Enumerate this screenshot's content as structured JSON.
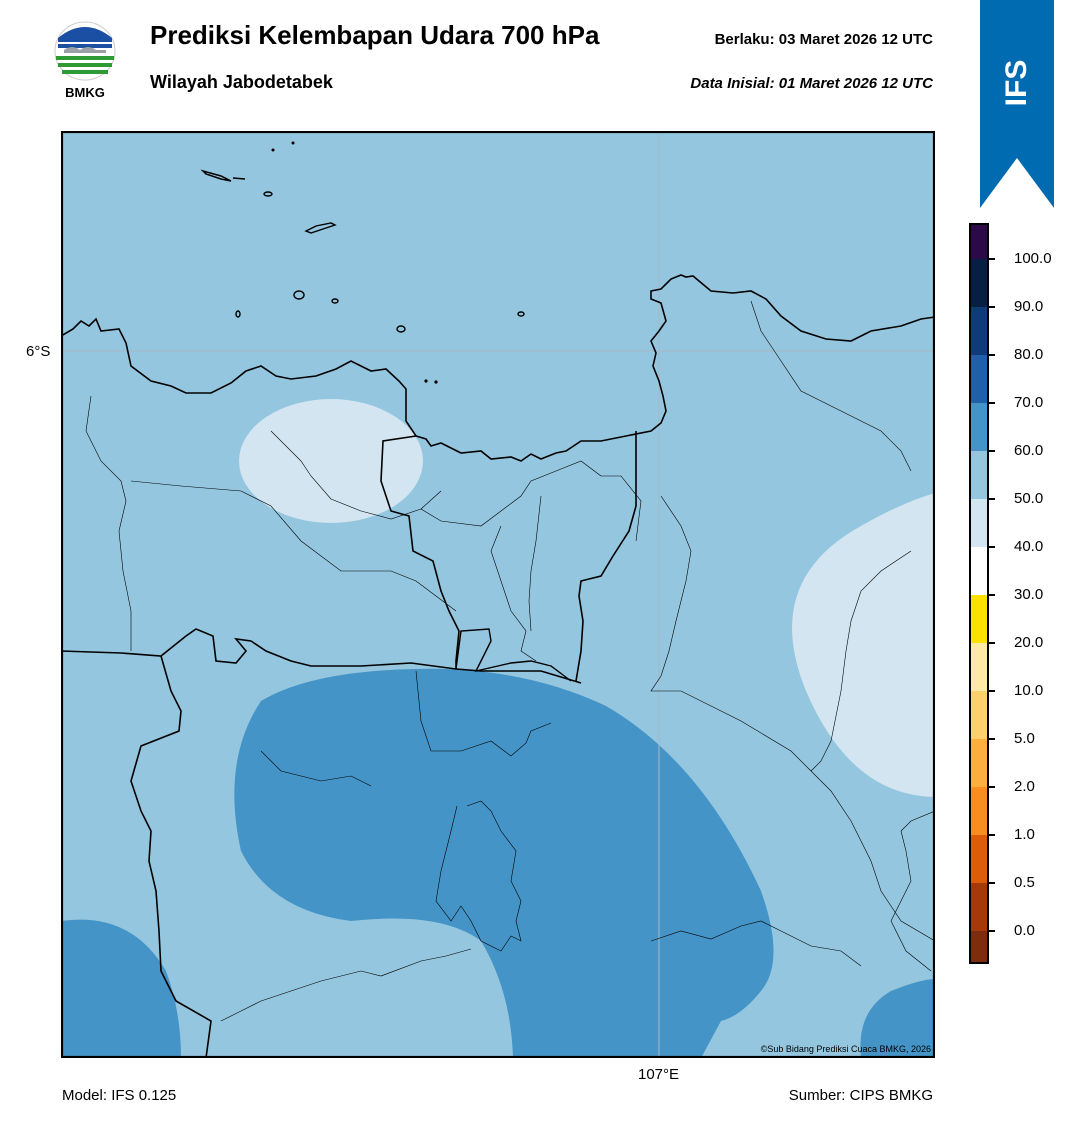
{
  "header": {
    "title": "Prediksi Kelembapan Udara 700 hPa",
    "subtitle": "Wilayah Jabodetabek",
    "valid_label": "Berlaku:  03 Maret 2026 12 UTC",
    "init_label": "Data Inisial:  01 Maret 2026 12 UTC"
  },
  "logo": {
    "text": "BMKG"
  },
  "ribbon": {
    "text": "IFS",
    "color": "#006bb0"
  },
  "map": {
    "lat_label": "6°S",
    "lon_label": "107°E",
    "credit": "©Sub Bidang Prediksi Cuaca BMKG, 2026",
    "field_colors": {
      "60-70": "#94c6df",
      "50-60": "#d2e5f0",
      "70-80": "#4494c7"
    }
  },
  "colorbar": {
    "ticks": [
      "100.0",
      "90.0",
      "80.0",
      "70.0",
      "60.0",
      "50.0",
      "40.0",
      "30.0",
      "20.0",
      "10.0",
      "5.0",
      "2.0",
      "1.0",
      "0.5",
      "0.0"
    ],
    "colors": [
      "#2c0a4a",
      "#081f45",
      "#0d3c78",
      "#2060a8",
      "#4494c7",
      "#94c6df",
      "#d2e5f0",
      "#ffffff",
      "#ffe100",
      "#ffe9a6",
      "#fecf6d",
      "#fcaf3f",
      "#f78e1f",
      "#dc5c09",
      "#a6390a",
      "#7d2d0b",
      "#5a2409",
      "#a3101b",
      "#e03a2e"
    ]
  },
  "footer": {
    "model": "Model: IFS 0.125",
    "source": "Sumber: CIPS BMKG"
  }
}
